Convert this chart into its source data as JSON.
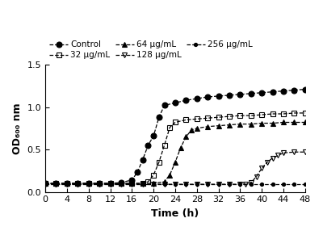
{
  "xlabel": "Time (h)",
  "ylabel": "OD₆₀₀ nm",
  "xlim": [
    0,
    48
  ],
  "ylim": [
    0,
    1.5
  ],
  "xticks": [
    0,
    4,
    8,
    12,
    16,
    20,
    24,
    28,
    32,
    36,
    40,
    44,
    48
  ],
  "yticks": [
    0.0,
    0.5,
    1.0,
    1.5
  ],
  "series": [
    {
      "label": "Control",
      "marker": "o",
      "fillstyle": "full",
      "markersize": 5,
      "color": "black",
      "x": [
        0,
        2,
        4,
        6,
        8,
        10,
        12,
        14,
        16,
        17,
        18,
        19,
        20,
        21,
        22,
        24,
        26,
        28,
        30,
        32,
        34,
        36,
        38,
        40,
        42,
        44,
        46,
        48
      ],
      "y": [
        0.1,
        0.1,
        0.1,
        0.1,
        0.1,
        0.1,
        0.1,
        0.11,
        0.14,
        0.23,
        0.38,
        0.55,
        0.66,
        0.88,
        1.02,
        1.05,
        1.08,
        1.1,
        1.12,
        1.13,
        1.14,
        1.15,
        1.16,
        1.17,
        1.18,
        1.19,
        1.2,
        1.21
      ]
    },
    {
      "label": "32 μg/mL",
      "marker": "s",
      "fillstyle": "none",
      "markersize": 5,
      "color": "black",
      "x": [
        0,
        2,
        4,
        6,
        8,
        10,
        12,
        14,
        16,
        18,
        19,
        20,
        21,
        22,
        23,
        24,
        26,
        28,
        30,
        32,
        34,
        36,
        38,
        40,
        42,
        44,
        46,
        48
      ],
      "y": [
        0.1,
        0.1,
        0.1,
        0.1,
        0.1,
        0.1,
        0.1,
        0.1,
        0.1,
        0.1,
        0.12,
        0.2,
        0.35,
        0.55,
        0.76,
        0.82,
        0.85,
        0.86,
        0.87,
        0.88,
        0.89,
        0.9,
        0.9,
        0.91,
        0.92,
        0.92,
        0.93,
        0.93
      ]
    },
    {
      "label": "64 μg/mL",
      "marker": "^",
      "fillstyle": "full",
      "markersize": 5,
      "color": "black",
      "x": [
        0,
        2,
        4,
        6,
        8,
        10,
        12,
        14,
        16,
        18,
        20,
        22,
        23,
        24,
        25,
        26,
        27,
        28,
        30,
        32,
        34,
        36,
        38,
        40,
        42,
        44,
        46,
        48
      ],
      "y": [
        0.1,
        0.1,
        0.1,
        0.1,
        0.1,
        0.1,
        0.1,
        0.1,
        0.1,
        0.1,
        0.1,
        0.12,
        0.2,
        0.35,
        0.52,
        0.65,
        0.73,
        0.75,
        0.77,
        0.78,
        0.79,
        0.8,
        0.8,
        0.81,
        0.81,
        0.82,
        0.82,
        0.82
      ]
    },
    {
      "label": "128 μg/mL",
      "marker": "v",
      "fillstyle": "none",
      "markersize": 5,
      "color": "black",
      "x": [
        0,
        2,
        4,
        6,
        8,
        10,
        12,
        14,
        16,
        18,
        20,
        22,
        24,
        26,
        28,
        30,
        32,
        34,
        36,
        37,
        38,
        39,
        40,
        41,
        42,
        43,
        44,
        46,
        48
      ],
      "y": [
        0.1,
        0.09,
        0.09,
        0.09,
        0.09,
        0.09,
        0.09,
        0.09,
        0.09,
        0.09,
        0.09,
        0.09,
        0.09,
        0.09,
        0.09,
        0.09,
        0.09,
        0.09,
        0.09,
        0.09,
        0.11,
        0.18,
        0.28,
        0.35,
        0.4,
        0.43,
        0.46,
        0.47,
        0.47
      ]
    },
    {
      "label": "256 μg/mL",
      "marker": "o",
      "fillstyle": "full",
      "markersize": 3,
      "color": "black",
      "x": [
        0,
        2,
        4,
        6,
        8,
        10,
        12,
        14,
        16,
        18,
        20,
        22,
        24,
        26,
        28,
        30,
        32,
        34,
        36,
        38,
        40,
        42,
        44,
        46,
        48
      ],
      "y": [
        0.09,
        0.09,
        0.09,
        0.09,
        0.09,
        0.09,
        0.09,
        0.09,
        0.09,
        0.09,
        0.09,
        0.09,
        0.09,
        0.09,
        0.09,
        0.09,
        0.09,
        0.09,
        0.09,
        0.09,
        0.09,
        0.09,
        0.09,
        0.09,
        0.09
      ]
    }
  ],
  "legend_ncol": 3,
  "legend_row1": [
    "Control",
    "32 μg/mL",
    "64 μg/mL"
  ],
  "legend_row2": [
    "128 μg/mL",
    "256 μg/mL"
  ]
}
